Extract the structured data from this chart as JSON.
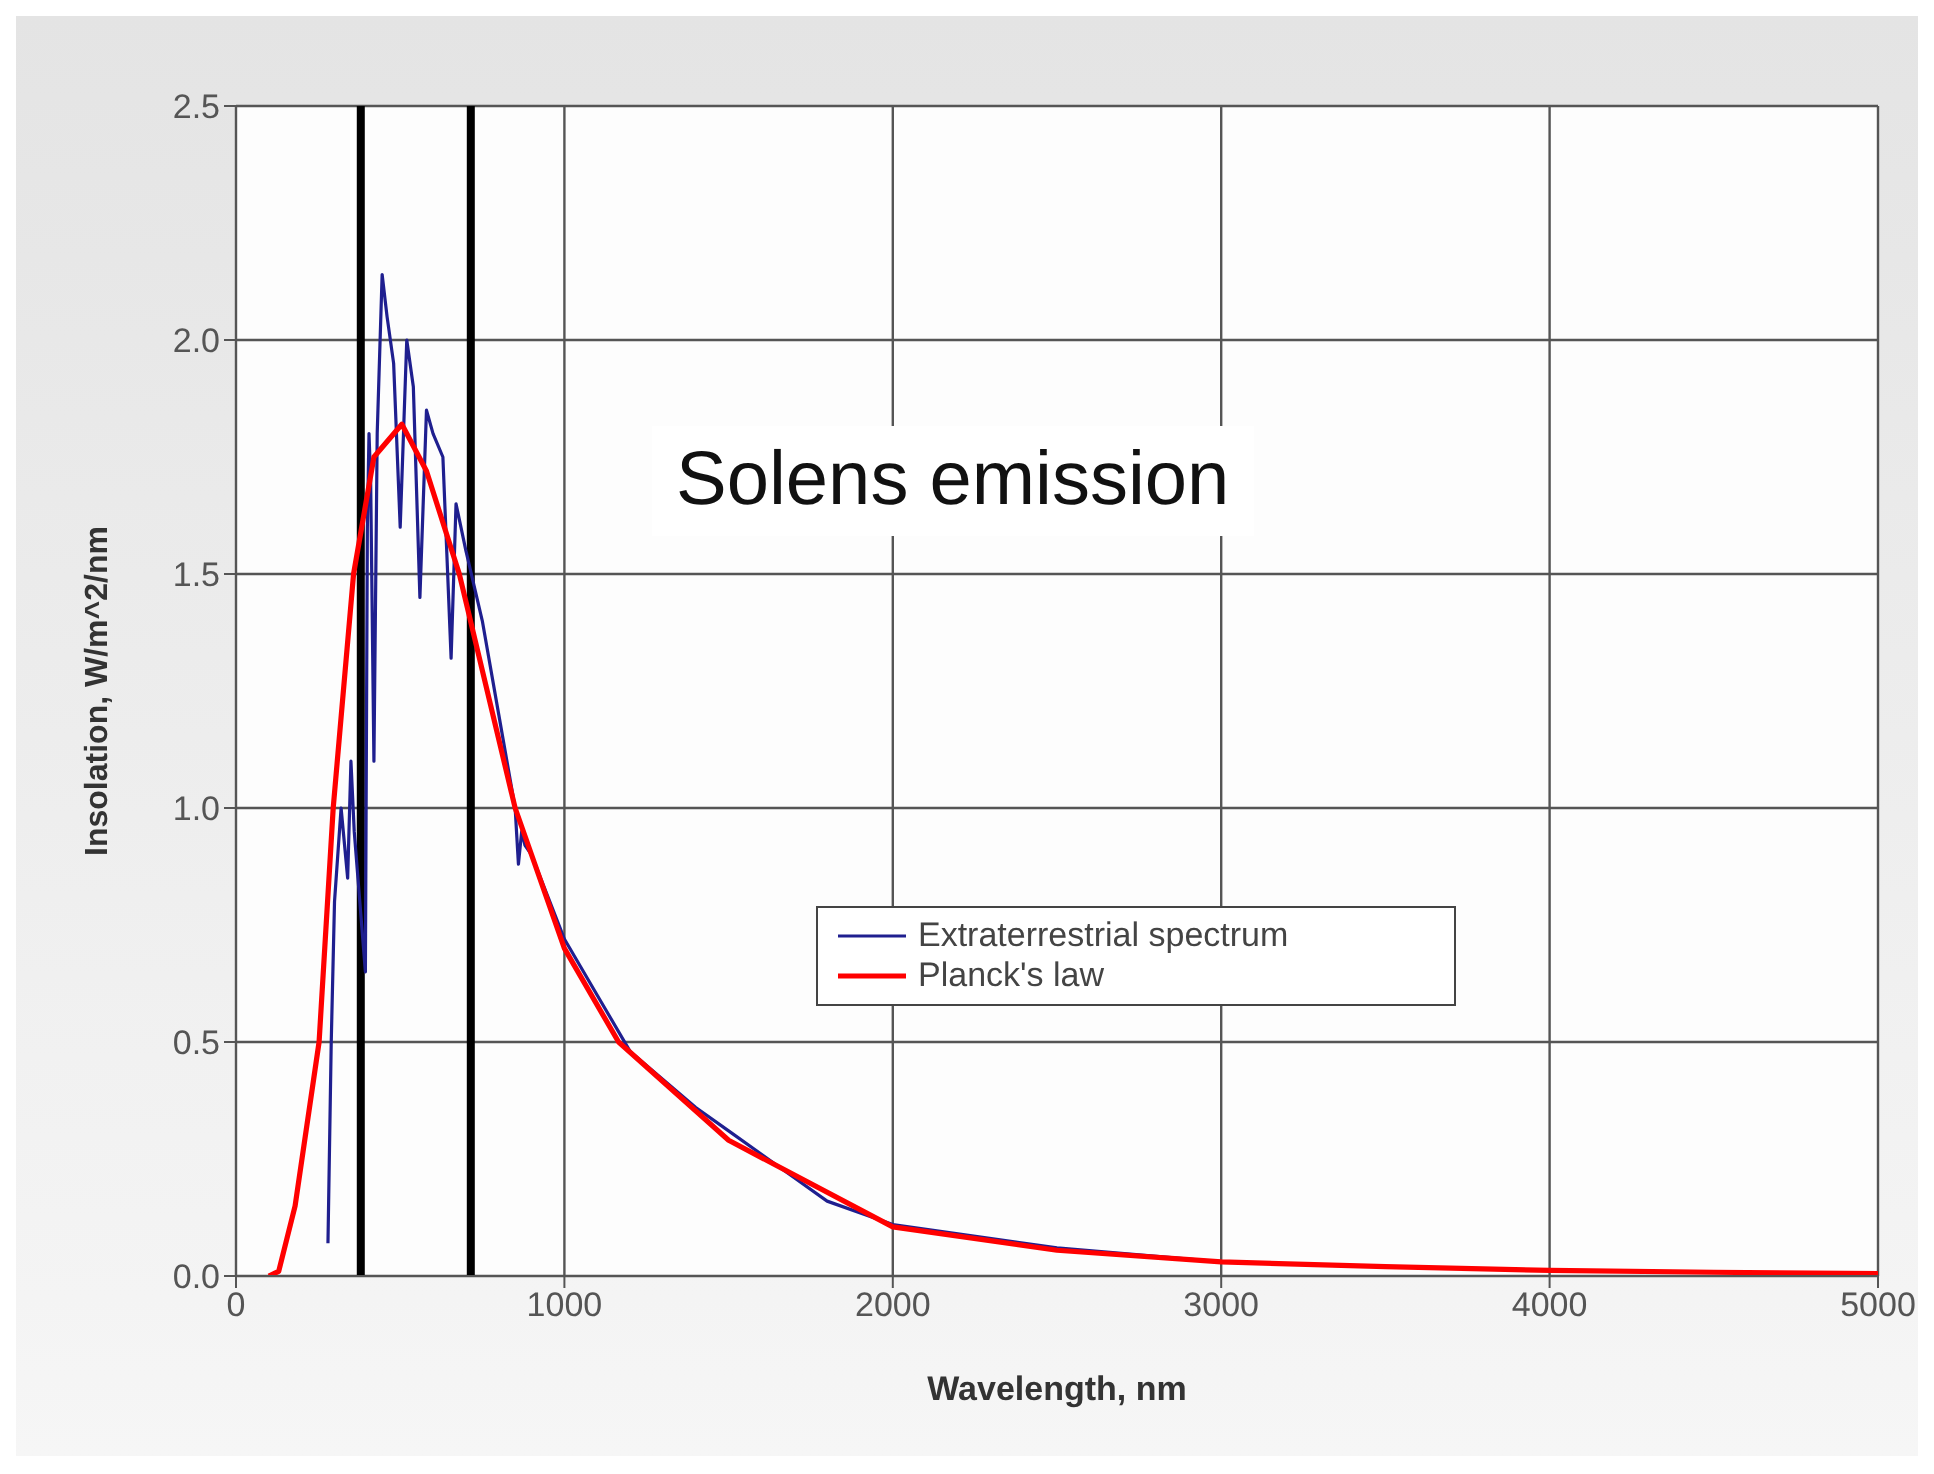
{
  "chart_data": {
    "type": "line",
    "xlabel": "Wavelength, nm",
    "ylabel": "Insolation, W/m^2/nm",
    "xlim": [
      0,
      5000
    ],
    "xticks": [
      0,
      1000,
      2000,
      3000,
      4000,
      5000
    ],
    "ylim": [
      0,
      2.5
    ],
    "yticks": [
      {
        "value": 0,
        "label": "0.0"
      },
      {
        "value": 0.5,
        "label": "0.5"
      },
      {
        "value": 1,
        "label": "1.0"
      },
      {
        "value": 1.5,
        "label": "1.5"
      },
      {
        "value": 2,
        "label": "2.0"
      },
      {
        "value": 2.5,
        "label": "2.5"
      }
    ],
    "grid": true,
    "legend": "right",
    "marker": "none",
    "line_style": "solid",
    "series": [
      {
        "name": "Extraterrestrial spectrum",
        "color": "#1f1f8f",
        "x": [
          280,
          290,
          300,
          320,
          340,
          350,
          360,
          394,
          400,
          405,
          410,
          420,
          430,
          445,
          460,
          480,
          500,
          520,
          540,
          560,
          580,
          600,
          630,
          655,
          670,
          700,
          750,
          800,
          850,
          860,
          870,
          880,
          900,
          1000,
          1100,
          1200,
          1300,
          1400,
          1500,
          1600,
          1700,
          1800,
          2000,
          2500,
          3000
        ],
        "values": [
          0.07,
          0.5,
          0.8,
          1.0,
          0.85,
          1.1,
          0.95,
          0.65,
          1.6,
          1.8,
          1.7,
          1.1,
          1.8,
          2.14,
          2.05,
          1.95,
          1.6,
          2.0,
          1.9,
          1.45,
          1.85,
          1.8,
          1.75,
          1.32,
          1.65,
          1.55,
          1.4,
          1.2,
          1.0,
          0.88,
          0.95,
          0.92,
          0.9,
          0.72,
          0.6,
          0.48,
          0.42,
          0.36,
          0.31,
          0.26,
          0.21,
          0.16,
          0.11,
          0.06,
          0.03
        ]
      },
      {
        "name": "Planck's law",
        "color": "#ff0000",
        "x": [
          100,
          130,
          180,
          253,
          296,
          358,
          420,
          505,
          580,
          680,
          850,
          1000,
          1165,
          1500,
          2000,
          2500,
          3000,
          3500,
          4000,
          4500,
          5000
        ],
        "values": [
          0,
          0.01,
          0.15,
          0.5,
          1.0,
          1.5,
          1.75,
          1.82,
          1.72,
          1.5,
          1.0,
          0.7,
          0.5,
          0.29,
          0.105,
          0.055,
          0.03,
          0.02,
          0.012,
          0.008,
          0.005
        ]
      }
    ],
    "ref_lines": [
      {
        "axis": "x",
        "value": 380,
        "color": "#000000"
      },
      {
        "axis": "x",
        "value": 715,
        "color": "#000000"
      }
    ],
    "annotations": [
      "Solens emission"
    ]
  }
}
